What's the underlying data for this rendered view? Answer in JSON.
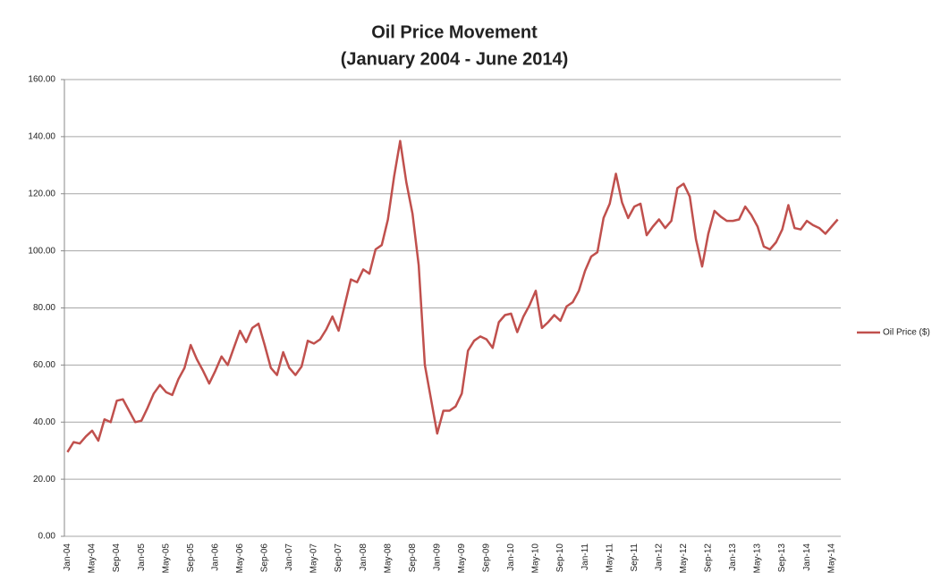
{
  "chart_data": {
    "type": "line",
    "title": "Oil Price Movement",
    "subtitle": "(January 2004 - June 2014)",
    "categories": [
      "Jan-04",
      null,
      null,
      null,
      "May-04",
      null,
      null,
      null,
      "Sep-04",
      null,
      null,
      null,
      "Jan-05",
      null,
      null,
      null,
      "May-05",
      null,
      null,
      null,
      "Sep-05",
      null,
      null,
      null,
      "Jan-06",
      null,
      null,
      null,
      "May-06",
      null,
      null,
      null,
      "Sep-06",
      null,
      null,
      null,
      "Jan-07",
      null,
      null,
      null,
      "May-07",
      null,
      null,
      null,
      "Sep-07",
      null,
      null,
      null,
      "Jan-08",
      null,
      null,
      null,
      "May-08",
      null,
      null,
      null,
      "Sep-08",
      null,
      null,
      null,
      "Jan-09",
      null,
      null,
      null,
      "May-09",
      null,
      null,
      null,
      "Sep-09",
      null,
      null,
      null,
      "Jan-10",
      null,
      null,
      null,
      "May-10",
      null,
      null,
      null,
      "Sep-10",
      null,
      null,
      null,
      "Jan-11",
      null,
      null,
      null,
      "May-11",
      null,
      null,
      null,
      "Sep-11",
      null,
      null,
      null,
      "Jan-12",
      null,
      null,
      null,
      "May-12",
      null,
      null,
      null,
      "Sep-12",
      null,
      null,
      null,
      "Jan-13",
      null,
      null,
      null,
      "May-13",
      null,
      null,
      null,
      "Sep-13",
      null,
      null,
      null,
      "Jan-14",
      null,
      null,
      null,
      "May-14",
      null
    ],
    "series": [
      {
        "name": "Oil Price ($)",
        "color": "#c0504d",
        "values": [
          29.5,
          33,
          32.5,
          35,
          37,
          33.5,
          41,
          40,
          47.5,
          48,
          44,
          40,
          40.5,
          45,
          50,
          53,
          50.5,
          49.5,
          55,
          59,
          67,
          62,
          58,
          53.5,
          58,
          63,
          60,
          66,
          72,
          68,
          73,
          74.5,
          67,
          59,
          56.5,
          64.5,
          59,
          56.5,
          59.5,
          68.5,
          67.5,
          69,
          72.5,
          77,
          72,
          81,
          90,
          89,
          93.5,
          92,
          100.5,
          102,
          111,
          126,
          138.5,
          124,
          113,
          95,
          60,
          48,
          36,
          44,
          44,
          45.5,
          50,
          65,
          68.5,
          70,
          69,
          66,
          75,
          77.5,
          78,
          71.5,
          77,
          81,
          86,
          73,
          75,
          77.5,
          75.5,
          80.5,
          82,
          86,
          93,
          98,
          99.5,
          111.5,
          116.5,
          127,
          117,
          111.5,
          115.5,
          116.5,
          105.5,
          108.5,
          111,
          108,
          110.5,
          122,
          123.5,
          119,
          104,
          94.5,
          106,
          114,
          112,
          110.5,
          110.5,
          111,
          115.5,
          112.5,
          108.5,
          101.5,
          100.5,
          103,
          107.5,
          116,
          108,
          107.5,
          110.5,
          109,
          108,
          106,
          108.5,
          111
        ]
      }
    ],
    "ylim": [
      0,
      160
    ],
    "yticks": [
      {
        "value": 0,
        "label": "0.00"
      },
      {
        "value": 20,
        "label": "20.00"
      },
      {
        "value": 40,
        "label": "40.00"
      },
      {
        "value": 60,
        "label": "60.00"
      },
      {
        "value": 80,
        "label": "80.00"
      },
      {
        "value": 100,
        "label": "100.00"
      },
      {
        "value": 120,
        "label": "120.00"
      },
      {
        "value": 140,
        "label": "140.00"
      },
      {
        "value": 160,
        "label": "160.00"
      }
    ],
    "grid": true,
    "legend": "right"
  }
}
